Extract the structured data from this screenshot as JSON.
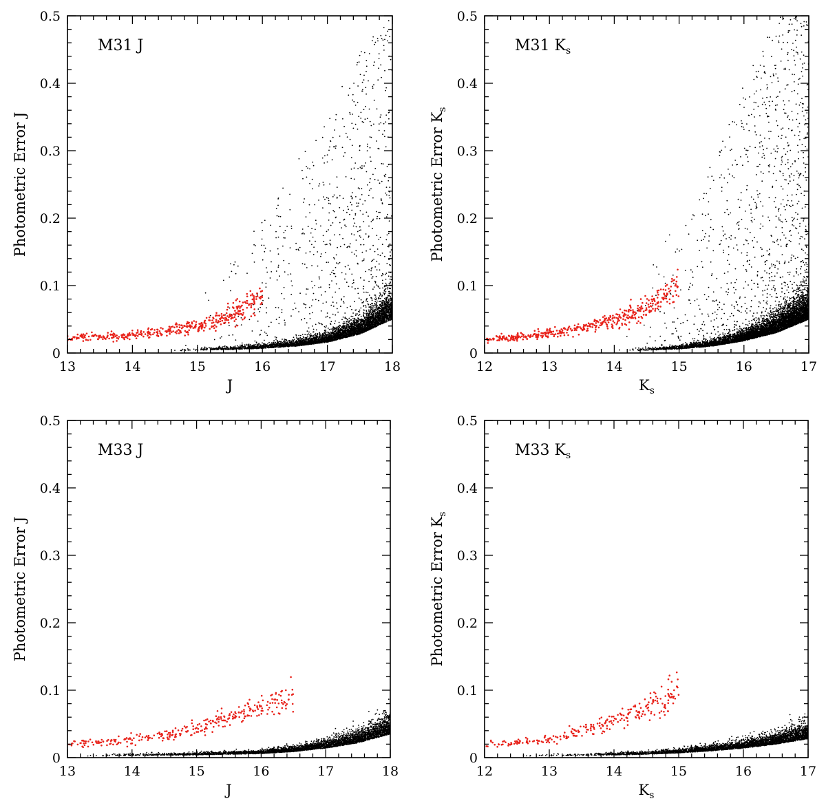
{
  "chart_data": [
    {
      "type": "scatter",
      "title": "M31 J",
      "xlabel": "J",
      "ylabel": "Photometric Error J",
      "xlim": [
        13,
        18
      ],
      "ylim": [
        0,
        0.5
      ],
      "xticks": [
        13,
        14,
        15,
        16,
        17,
        18
      ],
      "yticks": [
        0,
        0.1,
        0.2,
        0.3,
        0.4,
        0.5
      ],
      "grid": false,
      "series": [
        {
          "color": "#000000",
          "trend": [
            [
              14.5,
              0.003
            ],
            [
              15.0,
              0.004
            ],
            [
              15.5,
              0.005
            ],
            [
              16.0,
              0.007
            ],
            [
              16.5,
              0.01
            ],
            [
              17.0,
              0.016
            ],
            [
              17.5,
              0.028
            ],
            [
              18.0,
              0.05
            ]
          ],
          "scatter_envelope": [
            [
              14.5,
              0.05
            ],
            [
              15.0,
              0.09
            ],
            [
              15.5,
              0.14
            ],
            [
              16.0,
              0.2
            ],
            [
              16.5,
              0.28
            ],
            [
              17.0,
              0.35
            ],
            [
              17.5,
              0.45
            ],
            [
              18.0,
              0.5
            ]
          ],
          "count": 5200
        },
        {
          "color": "#e8221a",
          "trend": [
            [
              13.0,
              0.022
            ],
            [
              13.5,
              0.024
            ],
            [
              14.0,
              0.027
            ],
            [
              14.5,
              0.032
            ],
            [
              15.0,
              0.04
            ],
            [
              15.5,
              0.055
            ],
            [
              16.0,
              0.085
            ]
          ],
          "count": 420
        }
      ]
    },
    {
      "type": "scatter",
      "title": "M31 K",
      "title_sub": "s",
      "xlabel": "K",
      "xlabel_sub": "s",
      "ylabel": "Photometric Error K",
      "ylabel_sub": "s",
      "xlim": [
        12,
        17
      ],
      "ylim": [
        0,
        0.5
      ],
      "xticks": [
        12,
        13,
        14,
        15,
        16,
        17
      ],
      "yticks": [
        0,
        0.1,
        0.2,
        0.3,
        0.4,
        0.5
      ],
      "grid": false,
      "series": [
        {
          "color": "#000000",
          "trend": [
            [
              14.0,
              0.003
            ],
            [
              14.5,
              0.004
            ],
            [
              15.0,
              0.006
            ],
            [
              15.5,
              0.01
            ],
            [
              16.0,
              0.018
            ],
            [
              16.5,
              0.03
            ],
            [
              17.0,
              0.05
            ]
          ],
          "scatter_envelope": [
            [
              14.0,
              0.08
            ],
            [
              14.5,
              0.12
            ],
            [
              15.0,
              0.2
            ],
            [
              15.5,
              0.28
            ],
            [
              16.0,
              0.4
            ],
            [
              16.5,
              0.5
            ],
            [
              17.0,
              0.5
            ]
          ],
          "count": 6500
        },
        {
          "color": "#e8221a",
          "trend": [
            [
              12.0,
              0.02
            ],
            [
              12.5,
              0.024
            ],
            [
              13.0,
              0.03
            ],
            [
              13.5,
              0.036
            ],
            [
              14.0,
              0.05
            ],
            [
              14.5,
              0.07
            ],
            [
              15.0,
              0.1
            ]
          ],
          "count": 450
        }
      ]
    },
    {
      "type": "scatter",
      "title": "M33 J",
      "xlabel": "J",
      "ylabel": "Photometric Error J",
      "xlim": [
        13,
        18
      ],
      "ylim": [
        0,
        0.5
      ],
      "xticks": [
        13,
        14,
        15,
        16,
        17,
        18
      ],
      "yticks": [
        0,
        0.1,
        0.2,
        0.3,
        0.4,
        0.5
      ],
      "grid": false,
      "series": [
        {
          "color": "#000000",
          "trend": [
            [
              13.0,
              0.002
            ],
            [
              14.0,
              0.003
            ],
            [
              15.0,
              0.004
            ],
            [
              16.0,
              0.006
            ],
            [
              16.5,
              0.009
            ],
            [
              17.0,
              0.014
            ],
            [
              17.5,
              0.022
            ],
            [
              18.0,
              0.035
            ]
          ],
          "scatter_envelope": [
            [
              13.0,
              0.004
            ],
            [
              14.0,
              0.005
            ],
            [
              15.0,
              0.007
            ],
            [
              16.0,
              0.011
            ],
            [
              17.0,
              0.025
            ],
            [
              18.0,
              0.056
            ]
          ],
          "count": 3800
        },
        {
          "color": "#e8221a",
          "trend": [
            [
              13.0,
              0.021
            ],
            [
              13.5,
              0.023
            ],
            [
              14.0,
              0.026
            ],
            [
              14.5,
              0.032
            ],
            [
              15.0,
              0.043
            ],
            [
              15.5,
              0.058
            ],
            [
              16.0,
              0.075
            ],
            [
              16.5,
              0.095
            ]
          ],
          "count": 300
        }
      ]
    },
    {
      "type": "scatter",
      "title": "M33 K",
      "title_sub": "s",
      "xlabel": "K",
      "xlabel_sub": "s",
      "ylabel": "Photometric Error K",
      "ylabel_sub": "s",
      "xlim": [
        12,
        17
      ],
      "ylim": [
        0,
        0.5
      ],
      "xticks": [
        12,
        13,
        14,
        15,
        16,
        17
      ],
      "yticks": [
        0,
        0.1,
        0.2,
        0.3,
        0.4,
        0.5
      ],
      "grid": false,
      "series": [
        {
          "color": "#000000",
          "trend": [
            [
              12.5,
              0.002
            ],
            [
              13.5,
              0.003
            ],
            [
              14.5,
              0.005
            ],
            [
              15.0,
              0.007
            ],
            [
              15.5,
              0.01
            ],
            [
              16.0,
              0.014
            ],
            [
              16.5,
              0.02
            ],
            [
              17.0,
              0.028
            ]
          ],
          "scatter_envelope": [
            [
              12.5,
              0.004
            ],
            [
              14.0,
              0.006
            ],
            [
              15.0,
              0.011
            ],
            [
              16.0,
              0.022
            ],
            [
              17.0,
              0.045
            ]
          ],
          "count": 3600
        },
        {
          "color": "#e8221a",
          "trend": [
            [
              12.0,
              0.02
            ],
            [
              12.5,
              0.022
            ],
            [
              13.0,
              0.028
            ],
            [
              13.5,
              0.038
            ],
            [
              14.0,
              0.055
            ],
            [
              14.5,
              0.075
            ],
            [
              15.0,
              0.103
            ]
          ],
          "count": 260
        }
      ]
    }
  ]
}
